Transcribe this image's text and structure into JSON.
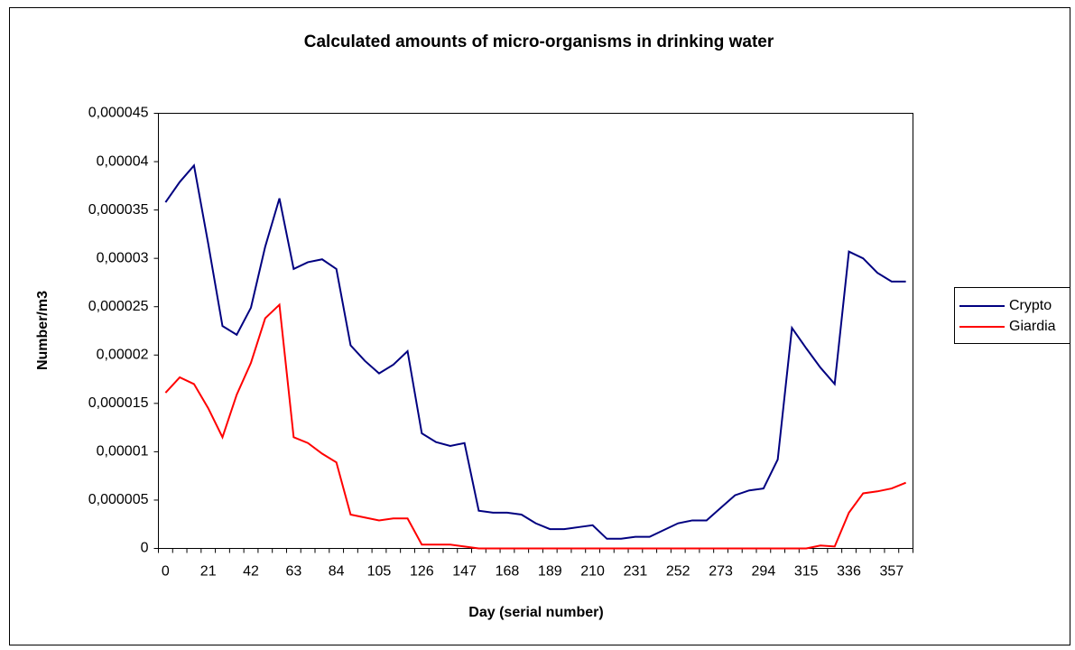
{
  "chart_data": {
    "type": "line",
    "title": "Calculated amounts of micro-organisms in drinking water",
    "xlabel": "Day (serial number)",
    "ylabel": "Number/m3",
    "categories": [
      0,
      null,
      null,
      21,
      null,
      null,
      42,
      null,
      null,
      63,
      null,
      null,
      84,
      null,
      null,
      105,
      null,
      null,
      126,
      null,
      null,
      147,
      null,
      null,
      168,
      null,
      null,
      189,
      null,
      null,
      210,
      null,
      null,
      231,
      null,
      null,
      252,
      null,
      null,
      273,
      null,
      null,
      294,
      null,
      null,
      315,
      null,
      null,
      336,
      null,
      null,
      357,
      null
    ],
    "series": [
      {
        "name": "Crypto",
        "color": "#000080",
        "values": [
          3.58e-05,
          3.79e-05,
          3.96e-05,
          3.15e-05,
          2.3e-05,
          2.21e-05,
          2.49e-05,
          3.12e-05,
          3.62e-05,
          2.89e-05,
          2.96e-05,
          2.99e-05,
          2.89e-05,
          2.1e-05,
          1.94e-05,
          1.81e-05,
          1.9e-05,
          2.04e-05,
          1.19e-05,
          1.1e-05,
          1.06e-05,
          1.09e-05,
          3.9e-06,
          3.7e-06,
          3.7e-06,
          3.5e-06,
          2.6e-06,
          2e-06,
          2e-06,
          2.2e-06,
          2.4e-06,
          1e-06,
          1e-06,
          1.2e-06,
          1.2e-06,
          1.9e-06,
          2.6e-06,
          2.9e-06,
          2.9e-06,
          4.2e-06,
          5.5e-06,
          6e-06,
          6.2e-06,
          9.2e-06,
          2.28e-05,
          2.07e-05,
          1.87e-05,
          1.7e-05,
          3.07e-05,
          3e-05,
          2.85e-05,
          2.76e-05,
          2.76e-05
        ]
      },
      {
        "name": "Giardia",
        "color": "#ff0000",
        "values": [
          1.61e-05,
          1.77e-05,
          1.7e-05,
          1.45e-05,
          1.15e-05,
          1.59e-05,
          1.92e-05,
          2.38e-05,
          2.52e-05,
          1.15e-05,
          1.09e-05,
          9.8e-06,
          8.9e-06,
          3.5e-06,
          3.2e-06,
          2.9e-06,
          3.1e-06,
          3.1e-06,
          4e-07,
          4e-07,
          4e-07,
          2e-07,
          0,
          0,
          0,
          0,
          0,
          0,
          0,
          0,
          0,
          0,
          0,
          0,
          0,
          0,
          0,
          0,
          0,
          0,
          0,
          0,
          0,
          0,
          0,
          0,
          3e-07,
          2e-07,
          3.7e-06,
          5.7e-06,
          5.9e-06,
          6.2e-06,
          6.8e-06
        ]
      }
    ],
    "ylim": [
      0,
      4.5e-05
    ],
    "yticks": [
      0,
      {
        "value": 5e-06,
        "label": "0,000005"
      },
      {
        "value": 1e-05,
        "label": "0,00001"
      },
      {
        "value": 1.5e-05,
        "label": "0,000015"
      },
      {
        "value": 2e-05,
        "label": "0,00002"
      },
      {
        "value": 2.5e-05,
        "label": "0,000025"
      },
      {
        "value": 3e-05,
        "label": "0,00003"
      },
      {
        "value": 3.5e-05,
        "label": "0,000035"
      },
      {
        "value": 4e-05,
        "label": "0,00004"
      },
      {
        "value": 4.5e-05,
        "label": "0,000045"
      }
    ],
    "grid": false,
    "legend": "right"
  }
}
